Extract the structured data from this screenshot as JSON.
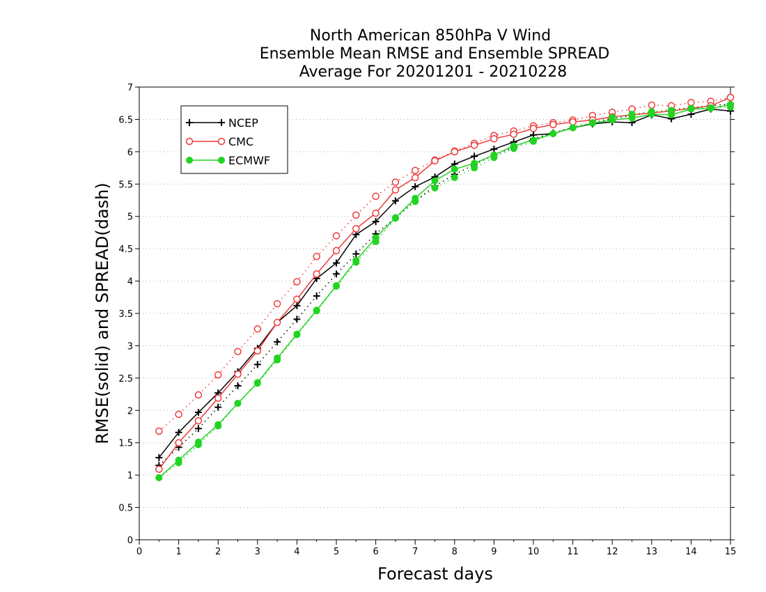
{
  "chart_data": {
    "type": "line",
    "title": [
      "North American 850hPa V Wind",
      "Ensemble Mean RMSE and Ensemble SPREAD",
      "Average For 20201201 - 20210228"
    ],
    "xlabel": "Forecast days",
    "ylabel": "RMSE(solid) and SPREAD(dash)",
    "xlim": [
      0,
      15
    ],
    "ylim": [
      0,
      7
    ],
    "xticks": [
      0,
      1,
      2,
      3,
      4,
      5,
      6,
      7,
      8,
      9,
      10,
      11,
      12,
      13,
      14,
      15
    ],
    "yticks": [
      0,
      0.5,
      1,
      1.5,
      2,
      2.5,
      3,
      3.5,
      4,
      4.5,
      5,
      5.5,
      6,
      6.5,
      7
    ],
    "grid": "horizontal-dotted",
    "legend_position": "top-left",
    "x": [
      0.5,
      1,
      1.5,
      2,
      2.5,
      3,
      3.5,
      4,
      4.5,
      5,
      5.5,
      6,
      6.5,
      7,
      7.5,
      8,
      8.5,
      9,
      9.5,
      10,
      10.5,
      11,
      11.5,
      12,
      12.5,
      13,
      13.5,
      14,
      14.5,
      15
    ],
    "series": [
      {
        "name": "NCEP",
        "color": "#000000",
        "marker": "plus",
        "rmse": [
          1.27,
          1.66,
          1.97,
          2.27,
          2.6,
          2.96,
          3.36,
          3.62,
          4.04,
          4.28,
          4.72,
          4.92,
          5.24,
          5.46,
          5.61,
          5.81,
          5.93,
          6.04,
          6.15,
          6.26,
          6.28,
          6.37,
          6.43,
          6.46,
          6.45,
          6.57,
          6.51,
          6.58,
          6.66,
          6.63
        ],
        "spread": [
          1.15,
          1.43,
          1.72,
          2.05,
          2.38,
          2.71,
          3.06,
          3.41,
          3.77,
          4.11,
          4.42,
          4.73,
          4.98,
          5.24,
          5.47,
          5.65,
          5.8,
          5.95,
          6.07,
          6.2,
          6.29,
          6.38,
          6.45,
          6.51,
          6.56,
          6.61,
          6.65,
          6.68,
          6.71,
          6.74
        ]
      },
      {
        "name": "CMC",
        "color": "#ee3b3b",
        "marker": "circle",
        "rmse": [
          1.09,
          1.5,
          1.84,
          2.19,
          2.56,
          2.92,
          3.36,
          3.72,
          4.11,
          4.47,
          4.81,
          5.05,
          5.41,
          5.6,
          5.86,
          6.0,
          6.1,
          6.2,
          6.27,
          6.36,
          6.42,
          6.46,
          6.49,
          6.54,
          6.57,
          6.6,
          6.63,
          6.67,
          6.71,
          6.84
        ],
        "spread": [
          1.68,
          1.94,
          2.24,
          2.55,
          2.91,
          3.26,
          3.65,
          3.99,
          4.38,
          4.7,
          5.02,
          5.31,
          5.53,
          5.71,
          5.87,
          6.01,
          6.13,
          6.25,
          6.32,
          6.4,
          6.45,
          6.49,
          6.56,
          6.61,
          6.66,
          6.72,
          6.71,
          6.76,
          6.78,
          6.84
        ]
      },
      {
        "name": "ECMWF",
        "color": "#22d422",
        "marker": "dot",
        "rmse": [
          0.96,
          1.23,
          1.51,
          1.78,
          2.11,
          2.43,
          2.81,
          3.18,
          3.55,
          3.93,
          4.32,
          4.67,
          4.98,
          5.28,
          5.55,
          5.73,
          5.82,
          5.95,
          6.09,
          6.18,
          6.28,
          6.37,
          6.44,
          6.49,
          6.52,
          6.58,
          6.57,
          6.66,
          6.67,
          6.73
        ],
        "spread": [
          0.96,
          1.19,
          1.47,
          1.76,
          2.11,
          2.42,
          2.78,
          3.17,
          3.54,
          3.92,
          4.29,
          4.61,
          4.97,
          5.23,
          5.44,
          5.6,
          5.75,
          5.91,
          6.05,
          6.16,
          6.28,
          6.37,
          6.45,
          6.53,
          6.58,
          6.62,
          6.64,
          6.67,
          6.68,
          6.69
        ]
      }
    ]
  }
}
